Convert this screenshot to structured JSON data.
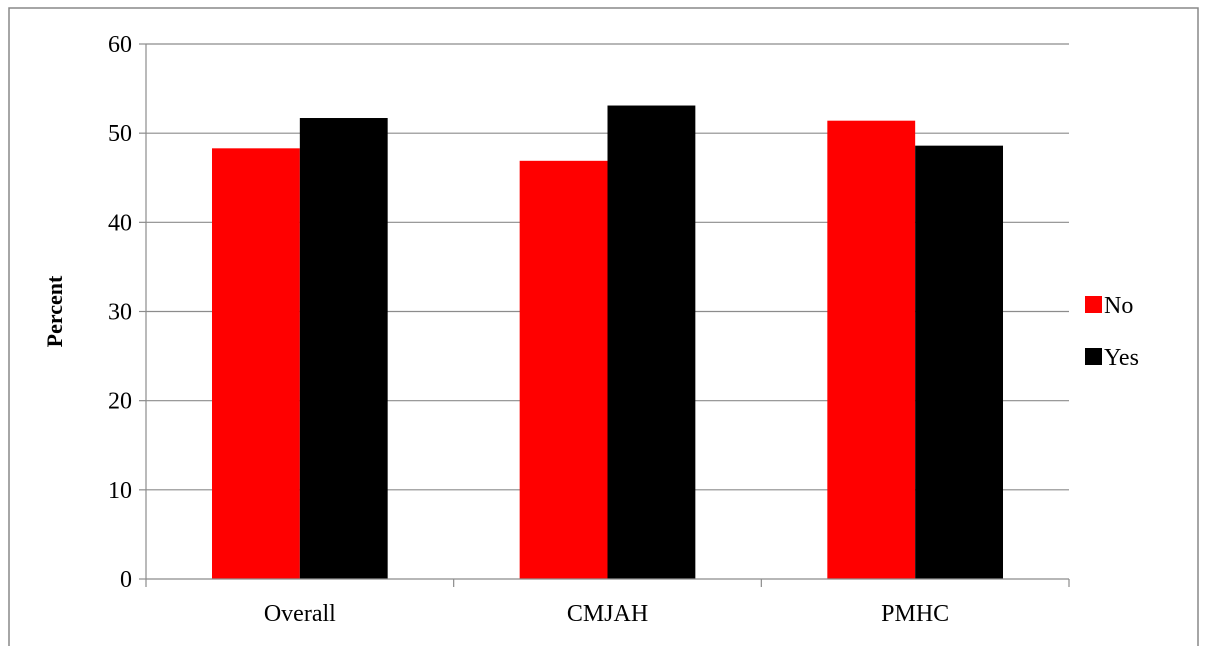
{
  "chart_data": {
    "type": "bar",
    "title": "",
    "xlabel": "",
    "ylabel": "Percent",
    "categories": [
      "Overall",
      "CMJAH",
      "PMHC"
    ],
    "series": [
      {
        "name": "No",
        "color": "#ff0000",
        "values": [
          48.3,
          46.9,
          51.4
        ]
      },
      {
        "name": "Yes",
        "color": "#000000",
        "values": [
          51.7,
          53.1,
          48.6
        ]
      }
    ],
    "ylim": [
      0,
      60
    ],
    "yticks": [
      0,
      10,
      20,
      30,
      40,
      50,
      60
    ],
    "grid": true,
    "legend_position": "right"
  }
}
